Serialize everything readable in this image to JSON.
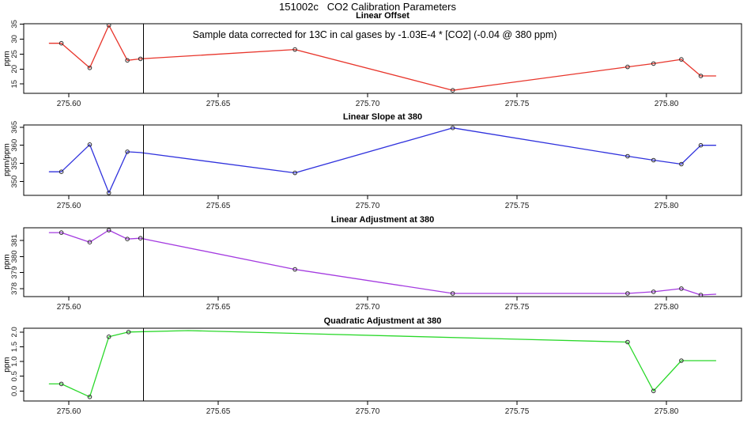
{
  "main_title": "151002c   CO2 Calibration Parameters",
  "annotation": "Sample data corrected for 13C in cal gases by -1.03E-4 * [CO2] (-0.04 @ 380 ppm)",
  "x_axis": {
    "ticks": [
      275.6,
      275.65,
      275.7,
      275.75,
      275.8
    ],
    "tick_labels": [
      "275.60",
      "275.65",
      "275.70",
      "275.75",
      "275.80"
    ],
    "range": [
      275.585,
      275.825
    ],
    "reference_line_x": 275.625
  },
  "chart_data": [
    {
      "type": "line",
      "title": "Linear Offset",
      "ylabel": "ppm",
      "color": "#e8352b",
      "yticks": [
        15,
        20,
        25,
        30,
        35
      ],
      "ylim": [
        11.9,
        35.1
      ],
      "x": [
        275.5935,
        275.5975,
        275.607,
        275.6134,
        275.6196,
        275.624,
        275.6757,
        275.7285,
        275.787,
        275.7957,
        275.805,
        275.8115,
        275.8165
      ],
      "y": [
        28.6,
        28.6,
        20.4,
        34.6,
        22.9,
        23.4,
        26.5,
        12.9,
        20.7,
        21.8,
        23.2,
        17.7,
        17.7
      ],
      "marker": [
        0,
        1,
        1,
        1,
        1,
        1,
        1,
        1,
        1,
        1,
        1,
        1,
        0
      ]
    },
    {
      "type": "line",
      "title": "Linear Slope at 380",
      "ylabel": "ppm/ppm",
      "color": "#3032dd",
      "yticks": [
        350,
        355,
        360,
        365
      ],
      "ylim": [
        346.2,
        365.6
      ],
      "x": [
        275.5935,
        275.5975,
        275.607,
        275.6134,
        275.6196,
        275.624,
        275.6757,
        275.7285,
        275.787,
        275.7957,
        275.805,
        275.8115,
        275.8165
      ],
      "y": [
        352.7,
        352.7,
        360.2,
        346.9,
        358.2,
        358.0,
        352.4,
        364.8,
        357.0,
        355.9,
        354.8,
        360.0,
        360.0
      ],
      "marker": [
        0,
        1,
        1,
        1,
        1,
        0,
        1,
        1,
        1,
        1,
        1,
        1,
        0
      ]
    },
    {
      "type": "line",
      "title": "Linear Adjustment at 380",
      "ylabel": "ppm",
      "color": "#a43be0",
      "yticks": [
        378,
        379,
        380,
        381
      ],
      "ylim": [
        377.5,
        381.8
      ],
      "x": [
        275.5935,
        275.5975,
        275.607,
        275.6134,
        275.6196,
        275.624,
        275.6757,
        275.7285,
        275.787,
        275.7957,
        275.805,
        275.8115,
        275.8165
      ],
      "y": [
        381.5,
        381.5,
        380.9,
        381.65,
        381.1,
        381.15,
        379.2,
        377.7,
        377.7,
        377.8,
        378.0,
        377.6,
        377.65
      ],
      "marker": [
        0,
        1,
        1,
        1,
        1,
        1,
        1,
        1,
        1,
        1,
        1,
        1,
        0
      ]
    },
    {
      "type": "line",
      "title": "Quadratic Adjustment at 380",
      "ylabel": "ppm",
      "color": "#2ad82a",
      "yticks": [
        0.0,
        0.5,
        1.0,
        1.5,
        2.0
      ],
      "ytick_labels": [
        "0.0",
        "0.5",
        "1.0",
        "1.5",
        "2.0"
      ],
      "ylim": [
        -0.34,
        2.13
      ],
      "x": [
        275.5935,
        275.5975,
        275.607,
        275.6134,
        275.62,
        275.64,
        275.787,
        275.7957,
        275.805,
        275.8165
      ],
      "y": [
        0.24,
        0.24,
        -0.2,
        1.84,
        2.0,
        2.05,
        1.66,
        0.0,
        1.03,
        1.03
      ],
      "marker": [
        0,
        1,
        1,
        1,
        1,
        0,
        1,
        1,
        1,
        0
      ]
    }
  ]
}
